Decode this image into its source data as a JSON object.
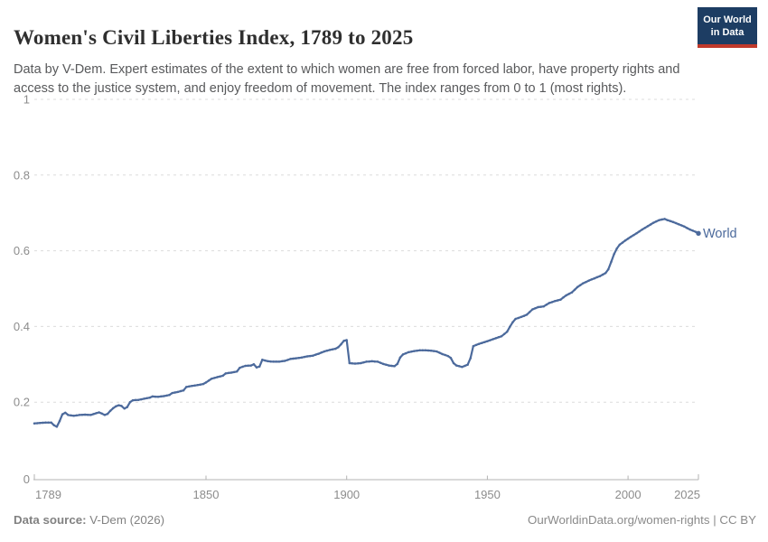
{
  "header": {
    "title": "Women's Civil Liberties Index, 1789 to 2025",
    "subtitle": "Data by V-Dem. Expert estimates of the extent to which women are free from forced labor, have property rights and access to the justice system, and enjoy freedom of movement. The index ranges from 0 to 1 (most rights).",
    "logo": {
      "line1": "Our World",
      "line2": "in Data"
    }
  },
  "chart_data": {
    "type": "line",
    "title": "Women's Civil Liberties Index, 1789 to 2025",
    "xlabel": "",
    "ylabel": "",
    "xlim": [
      1789,
      2025
    ],
    "ylim": [
      0,
      1
    ],
    "x_ticks": [
      1789,
      1850,
      1900,
      1950,
      2000,
      2025
    ],
    "y_ticks": [
      0,
      0.2,
      0.4,
      0.6,
      0.8,
      1
    ],
    "y_tick_labels": [
      "0",
      "0.2",
      "0.4",
      "0.6",
      "0.8",
      "1"
    ],
    "grid": "horizontal-dashed",
    "legend_position": "end-of-line",
    "series": [
      {
        "name": "World",
        "color": "#4C6A9C",
        "points": [
          [
            1789,
            0.144
          ],
          [
            1791,
            0.145
          ],
          [
            1793,
            0.146
          ],
          [
            1795,
            0.146
          ],
          [
            1796,
            0.139
          ],
          [
            1797,
            0.135
          ],
          [
            1798,
            0.15
          ],
          [
            1799,
            0.168
          ],
          [
            1800,
            0.172
          ],
          [
            1801,
            0.166
          ],
          [
            1803,
            0.164
          ],
          [
            1805,
            0.166
          ],
          [
            1807,
            0.167
          ],
          [
            1809,
            0.166
          ],
          [
            1811,
            0.171
          ],
          [
            1812,
            0.173
          ],
          [
            1813,
            0.17
          ],
          [
            1814,
            0.166
          ],
          [
            1815,
            0.169
          ],
          [
            1816,
            0.177
          ],
          [
            1817,
            0.184
          ],
          [
            1818,
            0.189
          ],
          [
            1819,
            0.192
          ],
          [
            1820,
            0.19
          ],
          [
            1821,
            0.183
          ],
          [
            1822,
            0.187
          ],
          [
            1823,
            0.2
          ],
          [
            1824,
            0.205
          ],
          [
            1826,
            0.206
          ],
          [
            1828,
            0.209
          ],
          [
            1830,
            0.212
          ],
          [
            1831,
            0.215
          ],
          [
            1833,
            0.214
          ],
          [
            1835,
            0.216
          ],
          [
            1837,
            0.219
          ],
          [
            1838,
            0.224
          ],
          [
            1840,
            0.227
          ],
          [
            1842,
            0.231
          ],
          [
            1843,
            0.24
          ],
          [
            1845,
            0.243
          ],
          [
            1847,
            0.245
          ],
          [
            1849,
            0.248
          ],
          [
            1850,
            0.252
          ],
          [
            1852,
            0.262
          ],
          [
            1854,
            0.266
          ],
          [
            1856,
            0.27
          ],
          [
            1857,
            0.276
          ],
          [
            1859,
            0.278
          ],
          [
            1861,
            0.281
          ],
          [
            1862,
            0.291
          ],
          [
            1864,
            0.296
          ],
          [
            1866,
            0.297
          ],
          [
            1867,
            0.3
          ],
          [
            1868,
            0.292
          ],
          [
            1869,
            0.294
          ],
          [
            1870,
            0.312
          ],
          [
            1872,
            0.308
          ],
          [
            1874,
            0.307
          ],
          [
            1876,
            0.307
          ],
          [
            1878,
            0.309
          ],
          [
            1880,
            0.314
          ],
          [
            1882,
            0.316
          ],
          [
            1884,
            0.318
          ],
          [
            1886,
            0.321
          ],
          [
            1888,
            0.323
          ],
          [
            1890,
            0.328
          ],
          [
            1892,
            0.334
          ],
          [
            1894,
            0.338
          ],
          [
            1896,
            0.341
          ],
          [
            1897,
            0.345
          ],
          [
            1898,
            0.353
          ],
          [
            1899,
            0.362
          ],
          [
            1900,
            0.364
          ],
          [
            1901,
            0.303
          ],
          [
            1903,
            0.302
          ],
          [
            1905,
            0.303
          ],
          [
            1907,
            0.307
          ],
          [
            1909,
            0.308
          ],
          [
            1911,
            0.307
          ],
          [
            1913,
            0.301
          ],
          [
            1915,
            0.297
          ],
          [
            1917,
            0.295
          ],
          [
            1918,
            0.301
          ],
          [
            1919,
            0.318
          ],
          [
            1920,
            0.326
          ],
          [
            1922,
            0.332
          ],
          [
            1924,
            0.335
          ],
          [
            1926,
            0.337
          ],
          [
            1928,
            0.337
          ],
          [
            1930,
            0.336
          ],
          [
            1932,
            0.334
          ],
          [
            1934,
            0.327
          ],
          [
            1936,
            0.322
          ],
          [
            1937,
            0.317
          ],
          [
            1938,
            0.303
          ],
          [
            1939,
            0.297
          ],
          [
            1941,
            0.293
          ],
          [
            1943,
            0.299
          ],
          [
            1944,
            0.316
          ],
          [
            1945,
            0.348
          ],
          [
            1947,
            0.354
          ],
          [
            1950,
            0.361
          ],
          [
            1953,
            0.369
          ],
          [
            1955,
            0.374
          ],
          [
            1957,
            0.386
          ],
          [
            1958,
            0.399
          ],
          [
            1959,
            0.411
          ],
          [
            1960,
            0.42
          ],
          [
            1962,
            0.425
          ],
          [
            1964,
            0.431
          ],
          [
            1966,
            0.445
          ],
          [
            1968,
            0.451
          ],
          [
            1970,
            0.453
          ],
          [
            1972,
            0.462
          ],
          [
            1974,
            0.467
          ],
          [
            1976,
            0.471
          ],
          [
            1978,
            0.482
          ],
          [
            1980,
            0.49
          ],
          [
            1982,
            0.504
          ],
          [
            1984,
            0.514
          ],
          [
            1986,
            0.521
          ],
          [
            1988,
            0.527
          ],
          [
            1990,
            0.533
          ],
          [
            1992,
            0.541
          ],
          [
            1993,
            0.551
          ],
          [
            1994,
            0.571
          ],
          [
            1995,
            0.591
          ],
          [
            1996,
            0.606
          ],
          [
            1997,
            0.616
          ],
          [
            1999,
            0.627
          ],
          [
            2001,
            0.637
          ],
          [
            2003,
            0.646
          ],
          [
            2005,
            0.656
          ],
          [
            2007,
            0.665
          ],
          [
            2009,
            0.674
          ],
          [
            2011,
            0.681
          ],
          [
            2013,
            0.684
          ],
          [
            2014,
            0.681
          ],
          [
            2016,
            0.676
          ],
          [
            2018,
            0.67
          ],
          [
            2020,
            0.664
          ],
          [
            2022,
            0.656
          ],
          [
            2024,
            0.65
          ],
          [
            2025,
            0.646
          ]
        ]
      }
    ]
  },
  "footer": {
    "source_label": "Data source:",
    "source_value": " V-Dem (2026)",
    "credit": "OurWorldinData.org/women-rights | CC BY"
  },
  "colors": {
    "line": "#4C6A9C",
    "logo_bg": "#1D3D63",
    "logo_accent": "#C0392B",
    "grid": "#DCDCDC",
    "axis": "#B3B3B3",
    "tick_label": "#8C8C8C",
    "title_text": "#2F2F2F",
    "subtitle_text": "#58595B",
    "footer_text": "#828282"
  }
}
